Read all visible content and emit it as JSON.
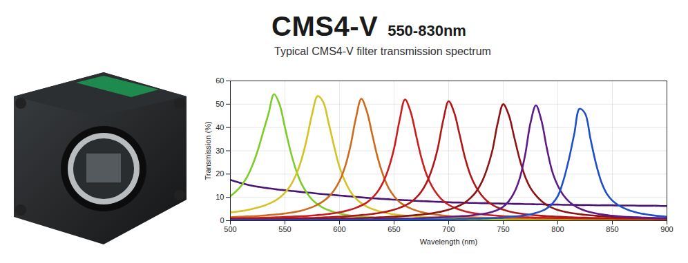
{
  "chart_data": {
    "type": "line",
    "title": "CMS4-V",
    "subtitle": "Typical CMS4-V filter transmission spectrum",
    "annotations": [
      "550-830nm"
    ],
    "x_label": "Wavelength (nm)",
    "y_label": "Transmission (%)",
    "xlim": [
      500,
      900
    ],
    "ylim": [
      0,
      60
    ],
    "xticks": [
      500,
      550,
      600,
      650,
      700,
      750,
      800,
      850,
      900
    ],
    "yticks": [
      0,
      10,
      20,
      30,
      40,
      50,
      60
    ],
    "grid": true,
    "x": [
      500,
      505,
      510,
      515,
      520,
      525,
      530,
      535,
      540,
      545,
      550,
      555,
      560,
      565,
      570,
      575,
      580,
      585,
      590,
      595,
      600,
      605,
      610,
      615,
      620,
      625,
      630,
      635,
      640,
      645,
      650,
      655,
      660,
      665,
      670,
      675,
      680,
      685,
      690,
      695,
      700,
      705,
      710,
      715,
      720,
      725,
      730,
      735,
      740,
      745,
      750,
      755,
      760,
      765,
      770,
      775,
      780,
      785,
      790,
      795,
      800,
      805,
      810,
      815,
      820,
      825,
      830,
      835,
      840,
      845,
      850,
      855,
      860,
      865,
      870,
      875,
      880,
      885,
      890,
      895,
      900
    ],
    "series": [
      {
        "color": "#4a1470",
        "values": [
          17.5,
          16.8,
          16.1,
          15.5,
          15,
          14.6,
          14.2,
          13.9,
          13.6,
          13.3,
          13.1,
          12.8,
          12.6,
          12.3,
          12.1,
          11.9,
          11.6,
          11.4,
          11.2,
          11,
          10.8,
          10.6,
          10.4,
          10.2,
          10,
          9.8,
          9.6,
          9.5,
          9.3,
          9.2,
          9,
          8.9,
          8.8,
          8.7,
          8.5,
          8.4,
          8.3,
          8.2,
          8.1,
          8,
          7.9,
          7.8,
          7.8,
          7.7,
          7.6,
          7.6,
          7.5,
          7.5,
          7.4,
          7.4,
          7.3,
          7.3,
          7.2,
          7.2,
          7.1,
          7.1,
          7.0,
          7.0,
          6.9,
          6.9,
          6.9,
          6.8,
          6.8,
          6.8,
          6.7,
          6.7,
          6.7,
          6.6,
          6.6,
          6.6,
          6.6,
          6.5,
          6.5,
          6.5,
          6.5,
          6.4,
          6.4,
          6.4,
          6.4,
          6.3,
          6.3
        ]
      },
      {
        "color": "#7ccc2a",
        "values": [
          10.5,
          12.5,
          15,
          18.5,
          23.5,
          30,
          38,
          46,
          54.3,
          50,
          40,
          30,
          22,
          16,
          12,
          9,
          7,
          5.5,
          4.5,
          3.7,
          3.1,
          2.6,
          2.2,
          1.9,
          1.7,
          1.5,
          1.4,
          1.3,
          1.2,
          1.1,
          1.0,
          0.9,
          0.9,
          0.8,
          0.8,
          0.8,
          0.7,
          0.7,
          0.7,
          0.6,
          0.6,
          0.6,
          0.6,
          0.6,
          0.6,
          0.6,
          0.5,
          0.5,
          0.5,
          0.5,
          0.5,
          0.5,
          0.5,
          0.5,
          0.5,
          0.4,
          0.4,
          0.4,
          0.4,
          0.4,
          0.4,
          0.4,
          0.4,
          0.4,
          0.4,
          0.4,
          0.4,
          0.4,
          0.4,
          0.4,
          0.4,
          0.3,
          0.3,
          0.3,
          0.3,
          0.3,
          0.3,
          0.3,
          0.3,
          0.3,
          0.3
        ]
      },
      {
        "color": "#d6c224",
        "values": [
          3.5,
          3.8,
          4.1,
          4.5,
          5,
          5.6,
          6.3,
          7.2,
          8.3,
          9.8,
          12,
          15,
          19.5,
          26,
          35,
          46,
          53.5,
          51,
          42,
          32,
          23,
          17,
          12.5,
          9.5,
          7.5,
          6,
          5,
          4.2,
          3.6,
          3.1,
          2.7,
          2.4,
          2.2,
          2,
          1.8,
          1.7,
          1.6,
          1.5,
          1.4,
          1.3,
          1.2,
          1.1,
          1.1,
          1,
          1,
          0.9,
          0.9,
          0.9,
          0.8,
          0.8,
          0.8,
          0.7,
          0.7,
          0.7,
          0.7,
          0.7,
          0.7,
          0.7,
          0.7,
          0.7,
          0.7,
          0.6,
          0.6,
          0.6,
          0.6,
          0.6,
          0.6,
          0.6,
          0.6,
          0.6,
          0.6,
          0.5,
          0.5,
          0.5,
          0.5,
          0.5,
          0.5,
          0.5,
          0.5,
          0.5,
          0.5
        ]
      },
      {
        "color": "#cc6a1e",
        "values": [
          1.5,
          1.6,
          1.7,
          1.8,
          1.9,
          2.0,
          2.2,
          2.4,
          2.6,
          2.8,
          3.1,
          3.4,
          3.8,
          4.3,
          5,
          5.8,
          6.9,
          8.3,
          10.2,
          13,
          17,
          23,
          32,
          44,
          52.3,
          47,
          37,
          27,
          19.5,
          14,
          10.5,
          8,
          6.5,
          5.3,
          4.4,
          3.7,
          3.2,
          2.8,
          2.5,
          2.2,
          2.0,
          1.8,
          1.7,
          1.6,
          1.5,
          1.4,
          1.3,
          1.2,
          1.2,
          1.1,
          1.1,
          1.0,
          1.0,
          1.0,
          1.0,
          1.0,
          0.9,
          0.9,
          0.9,
          0.9,
          0.9,
          0.9,
          0.9,
          0.9,
          0.9,
          0.9,
          0.8,
          0.8,
          0.8,
          0.8,
          0.8,
          0.7,
          0.7,
          0.7,
          0.7,
          0.7,
          0.7,
          0.7,
          0.7,
          0.7,
          0.7
        ]
      },
      {
        "color": "#c81e1e",
        "values": [
          1.0,
          1.0,
          1.1,
          1.1,
          1.2,
          1.2,
          1.3,
          1.3,
          1.4,
          1.5,
          1.6,
          1.7,
          1.8,
          1.9,
          2.0,
          2.2,
          2.4,
          2.6,
          2.9,
          3.2,
          3.6,
          4.1,
          4.7,
          5.5,
          6.5,
          7.8,
          9.8,
          12.5,
          16.5,
          22.5,
          31,
          43,
          52,
          47,
          37,
          27,
          19.5,
          14.5,
          11,
          8.5,
          6.8,
          5.6,
          4.7,
          4,
          3.5,
          3.1,
          2.8,
          2.5,
          2.3,
          2.1,
          1.9,
          1.8,
          1.7,
          1.6,
          1.5,
          1.4,
          1.3,
          1.3,
          1.2,
          1.2,
          1.1,
          1.1,
          1.1,
          1.0,
          1.0,
          1.0,
          1.0,
          0.9,
          0.9,
          0.9,
          0.9,
          0.9,
          0.8,
          0.8,
          0.8,
          0.8,
          0.8,
          0.8,
          0.7,
          0.7,
          0.7
        ]
      },
      {
        "color": "#b01818",
        "values": [
          0.7,
          0.7,
          0.7,
          0.8,
          0.8,
          0.8,
          0.8,
          0.9,
          0.9,
          0.9,
          1.0,
          1.0,
          1.1,
          1.1,
          1.2,
          1.2,
          1.3,
          1.4,
          1.5,
          1.6,
          1.7,
          1.8,
          2.0,
          2.2,
          2.4,
          2.6,
          2.9,
          3.2,
          3.6,
          4.1,
          4.7,
          5.5,
          6.5,
          7.8,
          9.8,
          12.5,
          16.5,
          22.5,
          31,
          43,
          51.3,
          46.5,
          37,
          27,
          19.5,
          14.5,
          11,
          8.5,
          6.8,
          5.6,
          4.7,
          4,
          3.5,
          3.1,
          2.8,
          2.5,
          2.3,
          2.1,
          1.9,
          1.8,
          1.7,
          1.6,
          1.5,
          1.4,
          1.3,
          1.3,
          1.2,
          1.2,
          1.1,
          1.1,
          1.1,
          1.0,
          1.0,
          1.0,
          1.0,
          0.9,
          0.9,
          0.9,
          0.9,
          0.9,
          0.8
        ]
      },
      {
        "color": "#8c1414",
        "values": [
          0.5,
          0.5,
          0.5,
          0.5,
          0.5,
          0.5,
          0.5,
          0.5,
          0.5,
          0.5,
          0.6,
          0.6,
          0.6,
          0.7,
          0.7,
          0.7,
          0.8,
          0.8,
          0.8,
          0.9,
          0.9,
          1.0,
          1.0,
          1.1,
          1.1,
          1.2,
          1.3,
          1.4,
          1.5,
          1.6,
          1.7,
          1.8,
          2.0,
          2.2,
          2.4,
          2.6,
          2.9,
          3.2,
          3.6,
          4.1,
          4.7,
          5.5,
          6.5,
          7.8,
          9.7,
          12.3,
          16.2,
          22,
          30,
          42,
          50,
          45.5,
          36,
          26.5,
          19,
          14,
          10.8,
          8.4,
          6.7,
          5.5,
          4.6,
          4,
          3.5,
          3.1,
          2.8,
          2.5,
          2.3,
          2.1,
          1.9,
          1.8,
          1.7,
          1.6,
          1.5,
          1.4,
          1.3,
          1.3,
          1.2,
          1.2,
          1.1,
          1.1,
          1.0
        ]
      },
      {
        "color": "#5e1a86",
        "values": [
          0.3,
          0.3,
          0.3,
          0.3,
          0.3,
          0.3,
          0.3,
          0.3,
          0.3,
          0.3,
          0.4,
          0.4,
          0.4,
          0.4,
          0.4,
          0.4,
          0.4,
          0.4,
          0.4,
          0.4,
          0.4,
          0.5,
          0.5,
          0.5,
          0.6,
          0.6,
          0.6,
          0.7,
          0.7,
          0.7,
          0.8,
          0.8,
          0.9,
          0.9,
          1.0,
          1.1,
          1.2,
          1.3,
          1.4,
          1.5,
          1.6,
          1.7,
          1.9,
          2.0,
          2.2,
          2.5,
          2.8,
          3.2,
          3.8,
          4.6,
          6.0,
          8.3,
          12,
          18,
          28,
          42,
          49.5,
          43,
          31,
          21,
          15,
          11,
          8.3,
          6.5,
          5.2,
          4.3,
          3.6,
          3.1,
          2.7,
          2.4,
          2.1,
          1.9,
          1.7,
          1.6,
          1.5,
          1.4,
          1.3,
          1.2,
          1.1,
          1.0,
          1.0
        ]
      },
      {
        "color": "#1f4fc8",
        "values": [
          0.2,
          0.2,
          0.2,
          0.2,
          0.2,
          0.2,
          0.2,
          0.2,
          0.2,
          0.2,
          0.2,
          0.2,
          0.2,
          0.2,
          0.2,
          0.3,
          0.3,
          0.3,
          0.3,
          0.3,
          0.3,
          0.3,
          0.3,
          0.3,
          0.3,
          0.3,
          0.3,
          0.3,
          0.3,
          0.3,
          0.3,
          0.3,
          0.4,
          0.4,
          0.4,
          0.4,
          0.5,
          0.5,
          0.5,
          0.5,
          0.6,
          0.6,
          0.7,
          0.7,
          0.8,
          0.8,
          0.9,
          1.0,
          1.1,
          1.2,
          1.3,
          1.6,
          1.8,
          2.0,
          2.3,
          2.7,
          3.3,
          4.1,
          5.3,
          7.3,
          10.5,
          17,
          26,
          37,
          48,
          46,
          35,
          24.5,
          16.5,
          11.5,
          8.6,
          6.8,
          5.5,
          4.5,
          3.8,
          3.2,
          2.8,
          2.4,
          2.1,
          1.9,
          1.7
        ]
      }
    ]
  }
}
